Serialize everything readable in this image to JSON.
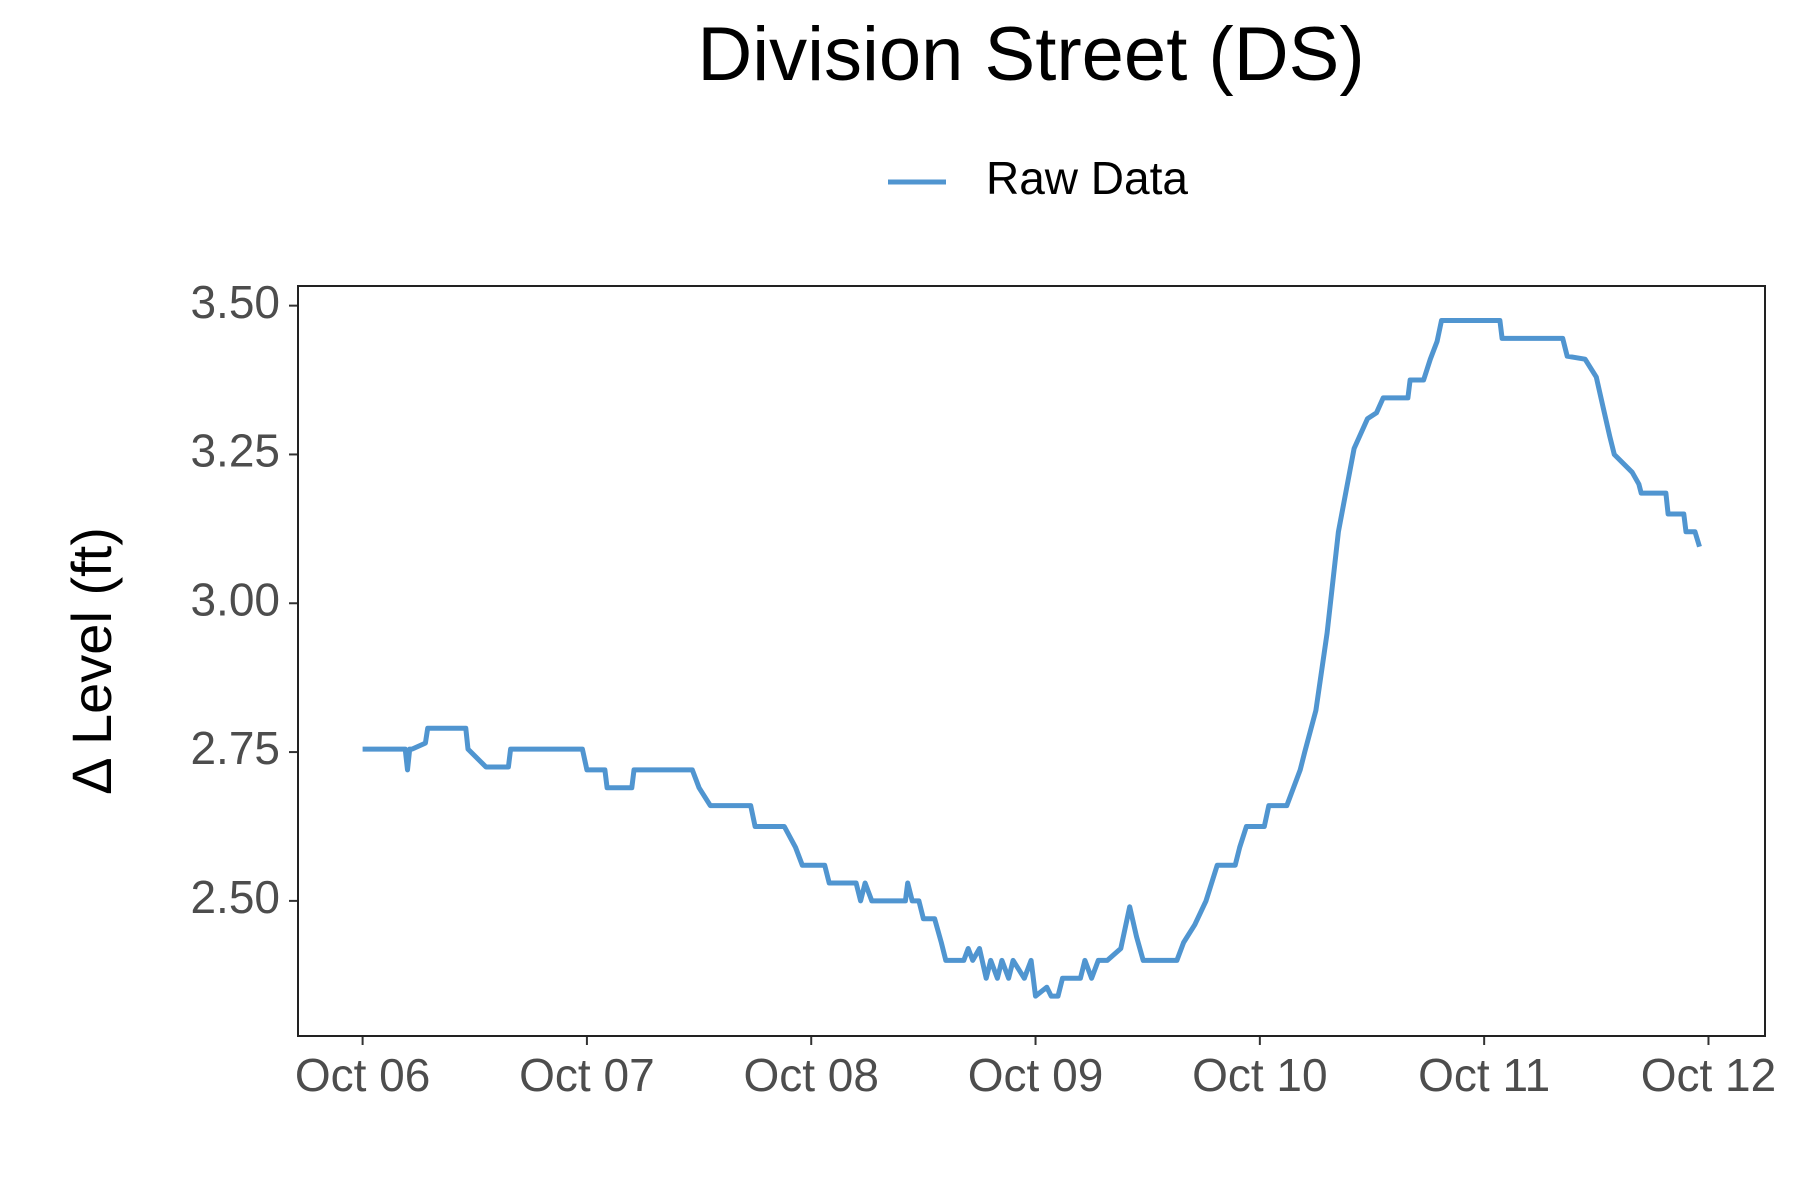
{
  "chart_data": {
    "type": "line",
    "title": "Division Street (DS)",
    "y_label": "Δ Level (ft)",
    "legend": "top",
    "grid": false,
    "xlim": [
      -0.288,
      6.252
    ],
    "ylim": [
      2.273,
      3.533
    ],
    "xticks": [
      {
        "value": 0,
        "label": "Oct 06"
      },
      {
        "value": 1,
        "label": "Oct 07"
      },
      {
        "value": 2,
        "label": "Oct 08"
      },
      {
        "value": 3,
        "label": "Oct 09"
      },
      {
        "value": 4,
        "label": "Oct 10"
      },
      {
        "value": 5,
        "label": "Oct 11"
      },
      {
        "value": 6,
        "label": "Oct 12"
      }
    ],
    "yticks": [
      {
        "value": 2.5,
        "label": "2.50"
      },
      {
        "value": 2.75,
        "label": "2.75"
      },
      {
        "value": 3,
        "label": "3.00"
      },
      {
        "value": 3.25,
        "label": "3.25"
      },
      {
        "value": 3.5,
        "label": "3.50"
      }
    ],
    "x": [
      0,
      0.19,
      0.2,
      0.21,
      0.22,
      0.28,
      0.29,
      0.46,
      0.47,
      0.55,
      0.65,
      0.66,
      0.98,
      1.0,
      1.08,
      1.09,
      1.2,
      1.21,
      1.47,
      1.5,
      1.55,
      1.73,
      1.75,
      1.88,
      1.93,
      1.96,
      2.06,
      2.08,
      2.2,
      2.22,
      2.24,
      2.27,
      2.42,
      2.43,
      2.45,
      2.48,
      2.5,
      2.55,
      2.58,
      2.6,
      2.68,
      2.7,
      2.72,
      2.75,
      2.78,
      2.8,
      2.83,
      2.85,
      2.88,
      2.9,
      2.95,
      2.98,
      3.0,
      3.05,
      3.07,
      3.1,
      3.12,
      3.2,
      3.22,
      3.25,
      3.28,
      3.32,
      3.38,
      3.42,
      3.45,
      3.48,
      3.63,
      3.66,
      3.71,
      3.76,
      3.81,
      3.89,
      3.91,
      3.94,
      4.02,
      4.04,
      4.12,
      4.15,
      4.18,
      4.2,
      4.25,
      4.3,
      4.35,
      4.4,
      4.42,
      4.48,
      4.52,
      4.55,
      4.66,
      4.67,
      4.73,
      4.76,
      4.79,
      4.81,
      5.07,
      5.08,
      5.35,
      5.37,
      5.45,
      5.5,
      5.53,
      5.56,
      5.58,
      5.66,
      5.69,
      5.7,
      5.81,
      5.82,
      5.89,
      5.9,
      5.94,
      5.96
    ],
    "series": [
      {
        "name": "Raw Data",
        "color": "#5095d0",
        "values": [
          2.755,
          2.755,
          2.72,
          2.755,
          2.755,
          2.765,
          2.79,
          2.79,
          2.755,
          2.725,
          2.725,
          2.755,
          2.755,
          2.72,
          2.72,
          2.69,
          2.69,
          2.72,
          2.72,
          2.69,
          2.66,
          2.66,
          2.625,
          2.625,
          2.59,
          2.56,
          2.56,
          2.53,
          2.53,
          2.5,
          2.53,
          2.5,
          2.5,
          2.53,
          2.5,
          2.5,
          2.47,
          2.47,
          2.43,
          2.4,
          2.4,
          2.42,
          2.4,
          2.42,
          2.37,
          2.4,
          2.37,
          2.4,
          2.37,
          2.4,
          2.37,
          2.4,
          2.34,
          2.355,
          2.34,
          2.34,
          2.37,
          2.37,
          2.4,
          2.37,
          2.4,
          2.4,
          2.42,
          2.49,
          2.44,
          2.4,
          2.4,
          2.43,
          2.46,
          2.5,
          2.56,
          2.56,
          2.59,
          2.625,
          2.625,
          2.66,
          2.66,
          2.69,
          2.72,
          2.75,
          2.82,
          2.95,
          3.12,
          3.22,
          3.26,
          3.31,
          3.32,
          3.345,
          3.345,
          3.375,
          3.375,
          3.41,
          3.44,
          3.475,
          3.475,
          3.445,
          3.445,
          3.415,
          3.41,
          3.38,
          3.33,
          3.28,
          3.25,
          3.22,
          3.2,
          3.185,
          3.185,
          3.15,
          3.15,
          3.12,
          3.12,
          3.095
        ]
      }
    ]
  }
}
